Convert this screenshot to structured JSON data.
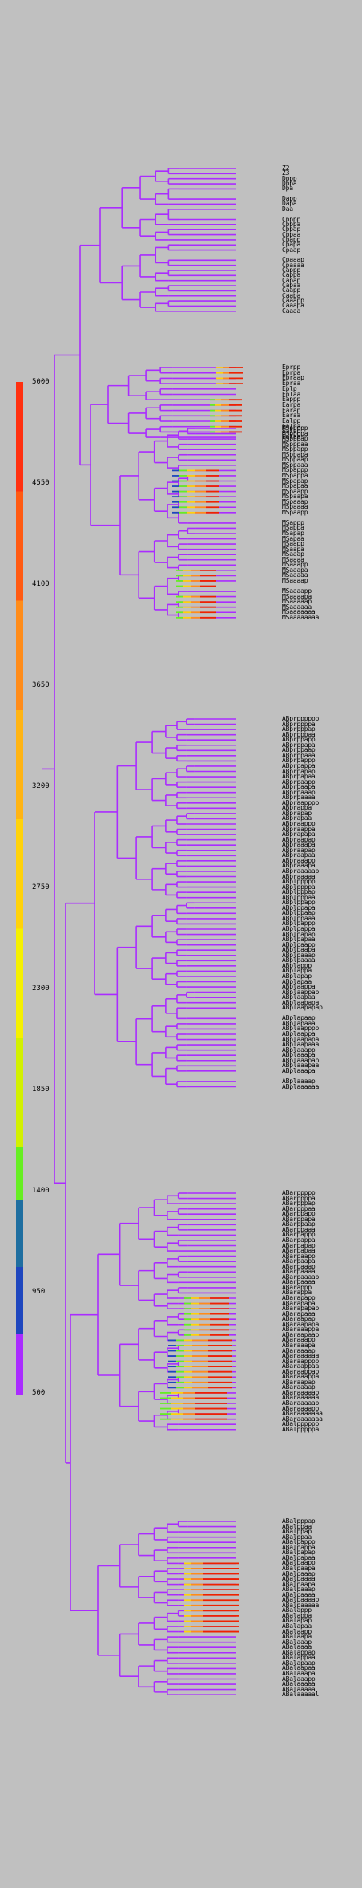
{
  "colorbar": {
    "ticks": [
      "5000",
      "4550",
      "4100",
      "3650",
      "3200",
      "2750",
      "2300",
      "1850",
      "1400",
      "950",
      "500"
    ],
    "colors": [
      "#ff3010",
      "#ff5a12",
      "#ff8c1a",
      "#ffb414",
      "#ffd20a",
      "#f5f000",
      "#d2f000",
      "#66ee22",
      "#1e6ea0",
      "#1e46be",
      "#aa2cff"
    ]
  },
  "tree_colors": {
    "base": "#aa2cff",
    "early": "#1e46be",
    "mid": "#66ee22",
    "late": "#ffd20a",
    "orange": "#ff8c1a",
    "final": "#ee2200"
  },
  "leaves": {
    "g1": [
      "Z2",
      "Z3",
      "Dppp",
      "Dppa",
      "Dpa",
      "",
      "Dapp",
      "Dapa",
      "Daa",
      "",
      "Cpppp",
      "Cpppa",
      "Cppap",
      "Cppaa",
      "Cpapp",
      "Cpapa",
      "Cpaap",
      "",
      "Cpaaap",
      "Cpaaaa",
      "Cappp",
      "Cappa",
      "Capap",
      "Capaa",
      "Caapp",
      "Caapa",
      "Caaapp",
      "Caaapa",
      "Caaaa"
    ],
    "g2": [
      "Eprpp",
      "Eprpa",
      "Epraap",
      "Epraa",
      "Eplp",
      "Eplaa",
      "Eappp",
      "Earpa",
      "Earap",
      "Earaa",
      "Ealpp",
      "Ealpa",
      "Ealap",
      "Ealaa"
    ],
    "g3": [
      "MSppppp",
      "MSppppa",
      "MSpppap",
      "MSpppaa",
      "MSppapp",
      "MSppapa",
      "MSppaap",
      "MSppaaa",
      "MSpappp",
      "MSpappa",
      "MSpapap",
      "MSpapaa",
      "MSpaapp",
      "MSpaapa",
      "MSpaaap",
      "MSpaaaa",
      "MSpaapp",
      "",
      "MSappp",
      "MSappa",
      "MSapap",
      "MSapaa",
      "MSaapp",
      "MSaapa",
      "MSaaap",
      "MSaaaa",
      "MSaaapp",
      "MSaaapa",
      "MSaaaaa",
      "MSaaaap",
      "",
      "MSaaaapp",
      "MSaaaapa",
      "MSaaaaap",
      "MSaaaaaa",
      "MSaaaaaaa",
      "MSaaaaaaaa"
    ],
    "g4": [
      "ABprpppppp",
      "ABprppppa",
      "ABprpppap",
      "ABprpppaa",
      "ABprppapp",
      "ABprppapa",
      "ABprppaap",
      "ABprppaaa",
      "ABprpappp",
      "ABprpappa",
      "ABprpapap",
      "ABprpapaa",
      "ABprpaapp",
      "ABprpaapa",
      "ABprpaaap",
      "ABprpaaaa",
      "ABpraapppp",
      "ABprappa",
      "ABprapap",
      "ABprapaa",
      "ABpraappp",
      "ABpraappa",
      "ABprapapa",
      "ABpraapap",
      "ABpraaapa",
      "ABpraapap",
      "ABpraapaa",
      "ABpraaapp",
      "ABpraaapa",
      "ABpraaaaap",
      "ABpraaaaa",
      "ABplppppp",
      "ABplppppa",
      "ABplpppap",
      "ABplpppaa",
      "ABplppapp",
      "ABplppapa",
      "ABplppaap",
      "ABplppaaa",
      "ABplpappp",
      "ABplpappa",
      "ABplpapap",
      "ABplpapaa",
      "ABplpaapp",
      "ABplpaapa",
      "ABplpaaap",
      "ABplpaaaa",
      "ABplappp",
      "ABplappa",
      "ABplapap",
      "ABplapaa",
      "ABplaappa",
      "ABplaappap",
      "ABplaapaa",
      "ABplaapapa",
      "ABplaapapap",
      "",
      "ABplapaap",
      "ABplapaaa",
      "ABplaapppp",
      "ABplaappa",
      "ABplaapapa",
      "ABplaapaaa",
      "ABplaaapp",
      "ABplaaapa",
      "ABplaaapap",
      "ABplaaapaa",
      "ABplaaapa",
      "",
      "ABplaaaap",
      "ABplaaaaaa"
    ],
    "g5": [
      "ABarppppp",
      "ABarppppa",
      "ABarpppap",
      "ABarpppaa",
      "ABarppapp",
      "ABarppapa",
      "ABarppaap",
      "ABarppaaa",
      "ABarpappp",
      "ABarpappa",
      "ABarpapap",
      "ABarpapaa",
      "ABarpaapp",
      "ABarpaapa",
      "ABarpaaap",
      "ABarpaaaa",
      "ABarpaaaap",
      "ABarpaaaa",
      "ABarappp",
      "ABarappa",
      "ABarapapp",
      "ABarapapa",
      "ABarapapap",
      "ABarapaaa",
      "ABaraapap",
      "ABaraapapa",
      "ABaraaappa",
      "ABaraapaap",
      "ABaraaapp",
      "ABaraaapa",
      "ABaraaaap",
      "ABaraaaaaa",
      "ABaraapppp",
      "ABaraappaa",
      "ABaraappap",
      "ABaraaappa",
      "ABaraapap",
      "ABaraaaap",
      "ABaraaaaap",
      "ABaraaaaaa",
      "ABaraaaaap",
      "ABaraaaapp",
      "ABaraaaaaaa",
      "ABaraaaaaaa",
      "ABalpppppp",
      "ABalpppppa"
    ],
    "g6": [
      "ABalpppap",
      "ABalppaa",
      "ABalppap",
      "ABalppaa",
      "ABalpappp",
      "ABalpappa",
      "ABalpapap",
      "ABalpapaa",
      "ABalpaapp",
      "ABalpaapa",
      "ABalpaaap",
      "ABalpaaaa",
      "ABalpaapa",
      "ABalpaaap",
      "ABalpaaaa",
      "ABalpaaaap",
      "ABalpaaaaa",
      "ABalappp",
      "ABalappa",
      "ABalapap",
      "ABalapaa",
      "ABalaapp",
      "ABalaapa",
      "ABalaaap",
      "ABalaaaa",
      "ABalappap",
      "ABalappaa",
      "ABalapaap",
      "ABalaapaa",
      "ABalaaapa",
      "ABalaaapp",
      "ABalaaaaa",
      "ABalaaaaa",
      "ABalaaaaal"
    ]
  }
}
